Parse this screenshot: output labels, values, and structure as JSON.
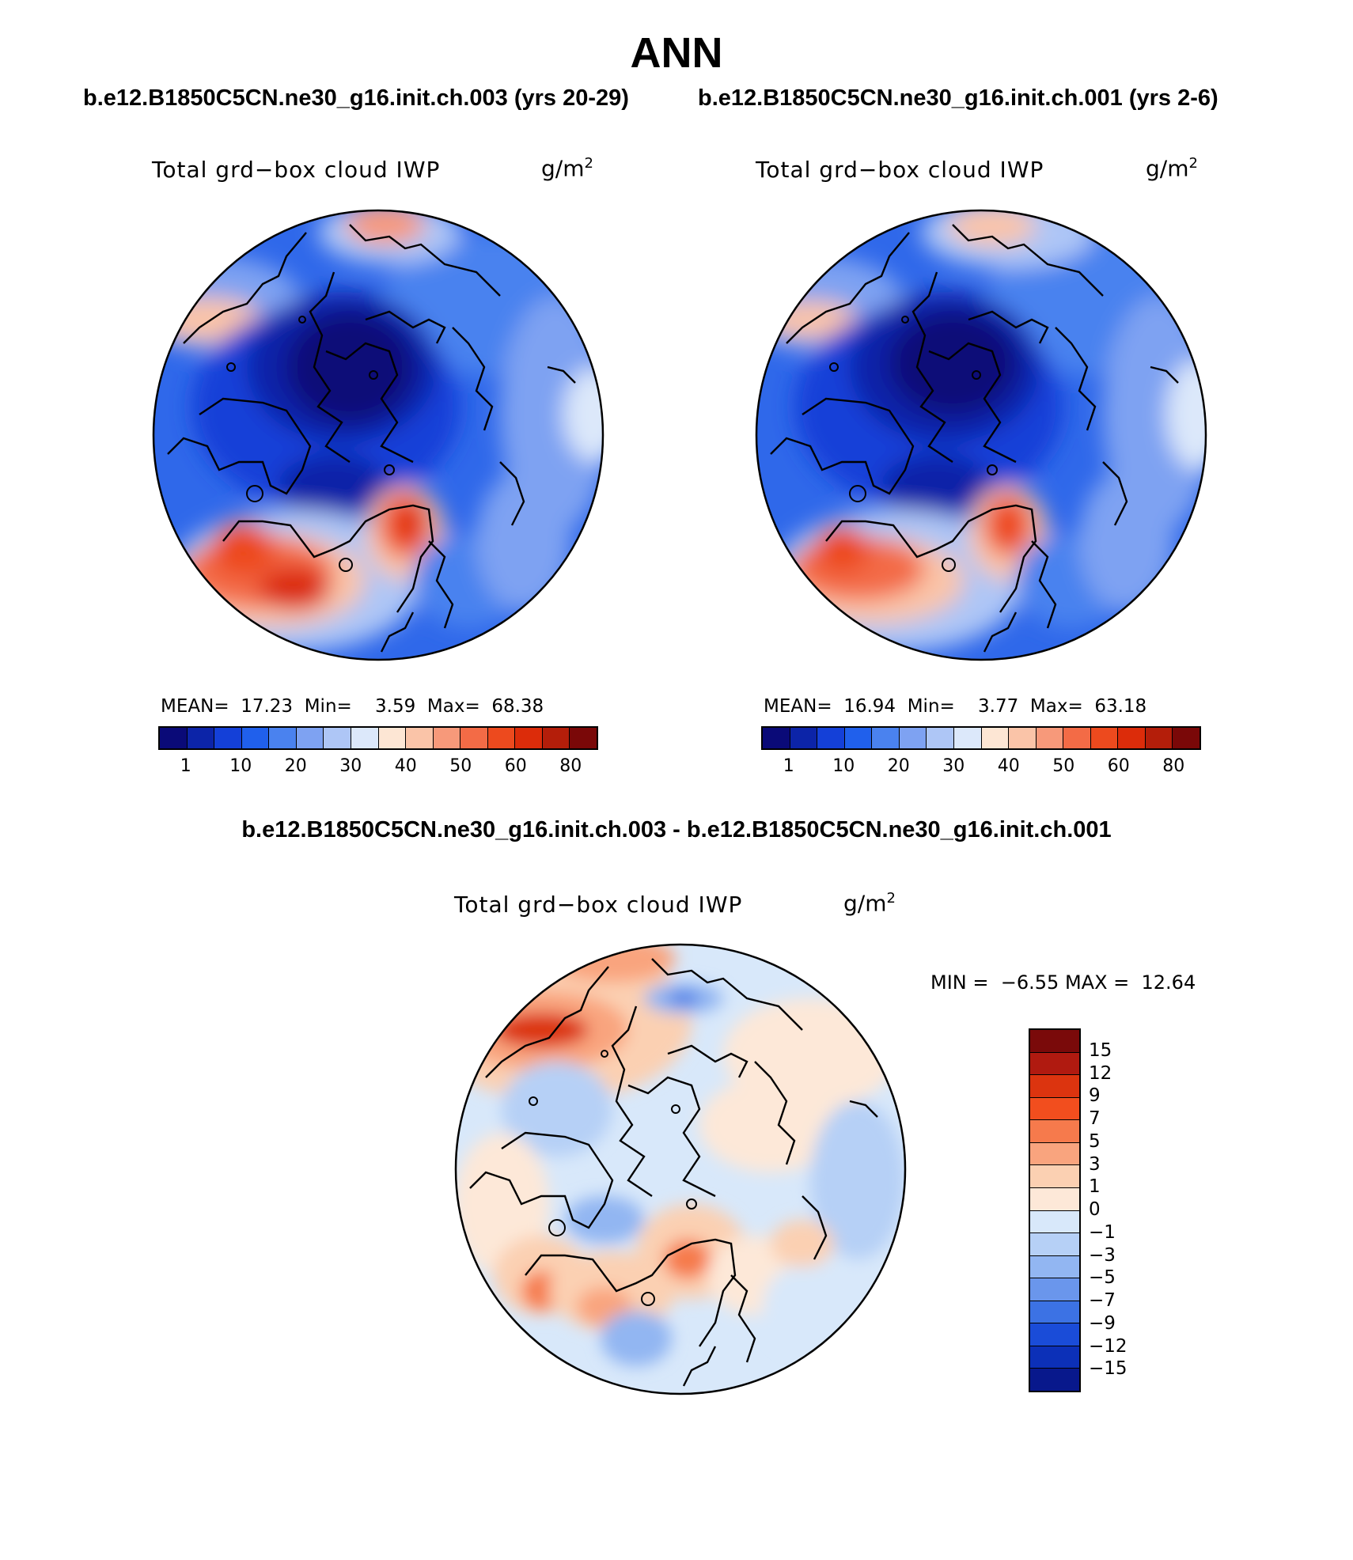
{
  "season": "ANN",
  "case1_title": "b.e12.B1850C5CN.ne30_g16.init.ch.003 (yrs 20-29)",
  "case2_title": "b.e12.B1850C5CN.ne30_g16.init.ch.001 (yrs 2-6)",
  "diff_title": "b.e12.B1850C5CN.ne30_g16.init.ch.003 - b.e12.B1850C5CN.ne30_g16.init.ch.001",
  "variable": "Total grd−box cloud IWP",
  "units_base": "g/m",
  "units_exp": "2",
  "panel1": {
    "mean_label": "MEAN=",
    "mean": "17.23",
    "min_label": "Min=",
    "min": "3.59",
    "max_label": "Max=",
    "max": "68.38"
  },
  "panel2": {
    "mean_label": "MEAN=",
    "mean": "16.94",
    "min_label": "Min=",
    "min": "3.77",
    "max_label": "Max=",
    "max": "63.18"
  },
  "diff": {
    "min_label": "MIN =",
    "min": "−6.55",
    "max_label": "MAX =",
    "max": "12.64"
  },
  "abs_colors": [
    "#0a0a78",
    "#0c24a8",
    "#1440d8",
    "#2060ec",
    "#4a82ef",
    "#7ea2f2",
    "#aec6f6",
    "#dce8fa",
    "#fde6d4",
    "#fac4a8",
    "#f7997a",
    "#f36b46",
    "#ed4a1e",
    "#dc2c0a",
    "#b41e0a",
    "#7a0808"
  ],
  "abs_ticks": [
    "1",
    "10",
    "20",
    "30",
    "40",
    "50",
    "60",
    "80"
  ],
  "diff_colors": [
    "#7a0a0a",
    "#b01a10",
    "#dc340f",
    "#f24e1e",
    "#f67a4c",
    "#f9a47e",
    "#fbd0b2",
    "#fde8d8",
    "#d8e8fa",
    "#b6d0f6",
    "#92b6f2",
    "#6a96ec",
    "#3c72e4",
    "#1a4cd8",
    "#0c30b8",
    "#08188c"
  ],
  "diff_ticks": [
    "15",
    "12",
    "9",
    "7",
    "5",
    "3",
    "1",
    "0",
    "−1",
    "−3",
    "−5",
    "−7",
    "−9",
    "−12",
    "−15"
  ],
  "chart_data": [
    {
      "type": "heatmap",
      "projection": "polar-stereographic (north pole)",
      "title": "b.e12.B1850C5CN.ne30_g16.init.ch.003 (yrs 20-29)",
      "variable": "Total grd−box cloud IWP",
      "units": "g/m2",
      "mean": 17.23,
      "min": 3.59,
      "max": 68.38,
      "levels": [
        1,
        5,
        10,
        15,
        20,
        25,
        30,
        35,
        40,
        45,
        50,
        55,
        60,
        70,
        80
      ]
    },
    {
      "type": "heatmap",
      "projection": "polar-stereographic (north pole)",
      "title": "b.e12.B1850C5CN.ne30_g16.init.ch.001 (yrs 2-6)",
      "variable": "Total grd−box cloud IWP",
      "units": "g/m2",
      "mean": 16.94,
      "min": 3.77,
      "max": 63.18,
      "levels": [
        1,
        5,
        10,
        15,
        20,
        25,
        30,
        35,
        40,
        45,
        50,
        55,
        60,
        70,
        80
      ]
    },
    {
      "type": "heatmap",
      "projection": "polar-stereographic (north pole)",
      "title": "b.e12.B1850C5CN.ne30_g16.init.ch.003 - b.e12.B1850C5CN.ne30_g16.init.ch.001",
      "variable": "Total grd−box cloud IWP",
      "units": "g/m2",
      "min": -6.55,
      "max": 12.64,
      "levels": [
        -15,
        -12,
        -9,
        -7,
        -5,
        -3,
        -1,
        0,
        1,
        3,
        5,
        7,
        9,
        12,
        15
      ]
    }
  ]
}
